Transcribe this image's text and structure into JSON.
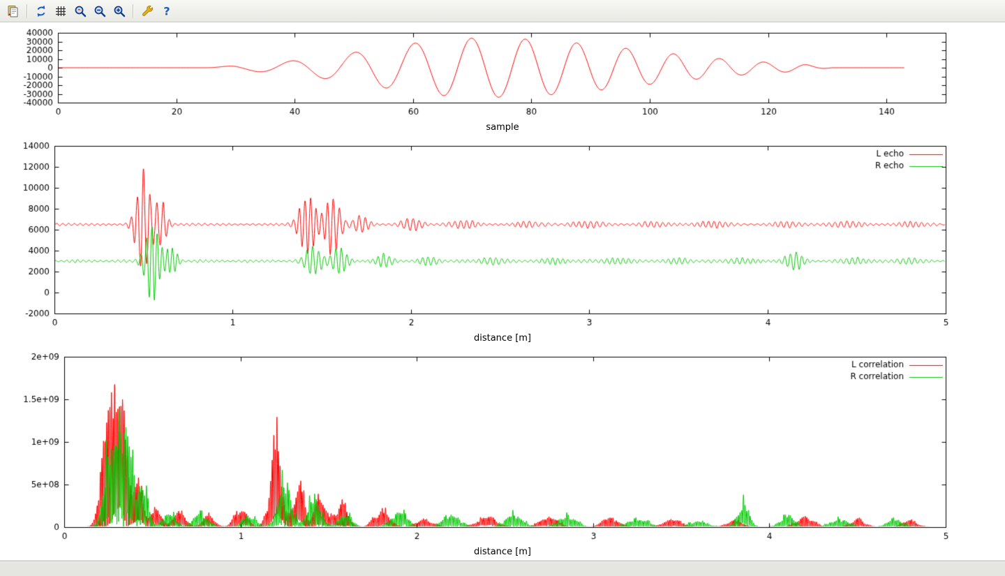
{
  "toolbar": {
    "buttons": [
      "copy",
      "replot",
      "grid",
      "zoom-previous",
      "zoom-out",
      "zoom-in",
      "settings",
      "help"
    ]
  },
  "statusbar": {
    "text": ""
  },
  "colors": {
    "red": "#ff0000",
    "green": "#00c800",
    "axis": "#000000"
  },
  "chart_data": [
    {
      "type": "line",
      "title": "",
      "xlabel": "sample",
      "ylabel": "",
      "xlim": [
        0,
        150
      ],
      "ylim": [
        -40000,
        40000
      ],
      "grid": false,
      "legend": false,
      "xticks": {
        "values": [
          0,
          20,
          40,
          60,
          80,
          100,
          120,
          140
        ],
        "labels": [
          "0",
          "20",
          "40",
          "60",
          "80",
          "100",
          "120",
          "140"
        ]
      },
      "yticks": {
        "values": [
          -40000,
          -30000,
          -20000,
          -10000,
          0,
          10000,
          20000,
          30000,
          40000
        ],
        "labels": [
          "-40000",
          "-30000",
          "-20000",
          "-10000",
          "0",
          "10000",
          "20000",
          "30000",
          "40000"
        ]
      },
      "series": [
        {
          "name": "",
          "color": "#ff0000",
          "gen": {
            "type": "chirp",
            "xstart": 25,
            "xend": 131,
            "xmax_data": 143,
            "peak": 72,
            "amp": 34000,
            "sigma_l": 19,
            "sigma_r": 26,
            "f0": 0.082,
            "f1": 0.142,
            "points": 1500
          }
        }
      ]
    },
    {
      "type": "line",
      "title": "",
      "xlabel": "distance [m]",
      "ylabel": "",
      "xlim": [
        0,
        5
      ],
      "ylim": [
        -2000,
        14000
      ],
      "grid": false,
      "legend": true,
      "legend_position": "top-right",
      "xticks": {
        "values": [
          0,
          1,
          2,
          3,
          4,
          5
        ],
        "labels": [
          "0",
          "1",
          "2",
          "3",
          "4",
          "5"
        ]
      },
      "yticks": {
        "values": [
          -2000,
          0,
          2000,
          4000,
          6000,
          8000,
          10000,
          12000,
          14000
        ],
        "labels": [
          "-2000",
          "0",
          "2000",
          "4000",
          "6000",
          "8000",
          "10000",
          "12000",
          "14000"
        ]
      },
      "series": [
        {
          "name": "L echo",
          "color": "#ff0000",
          "gen": {
            "type": "echo",
            "seed": 11,
            "points": 3200,
            "base": 6500,
            "base_amp": 150,
            "carrier_freq": 30,
            "bursts": [
              [
                0.5,
                0.05,
                6000
              ],
              [
                0.6,
                0.035,
                2600
              ],
              [
                1.42,
                0.055,
                3400
              ],
              [
                1.56,
                0.05,
                3400
              ],
              [
                1.72,
                0.05,
                1000
              ],
              [
                2.0,
                0.06,
                700
              ],
              [
                2.3,
                0.08,
                420
              ],
              [
                2.65,
                0.08,
                300
              ],
              [
                3.0,
                0.1,
                320
              ],
              [
                3.35,
                0.08,
                280
              ],
              [
                3.7,
                0.1,
                300
              ],
              [
                4.1,
                0.08,
                280
              ],
              [
                4.45,
                0.1,
                300
              ],
              [
                4.8,
                0.08,
                260
              ]
            ]
          }
        },
        {
          "name": "R echo",
          "color": "#00c800",
          "gen": {
            "type": "echo",
            "seed": 22,
            "points": 3200,
            "base": 3000,
            "base_amp": 160,
            "carrier_freq": 32,
            "bursts": [
              [
                0.55,
                0.05,
                4600
              ],
              [
                0.66,
                0.035,
                1600
              ],
              [
                1.45,
                0.055,
                1700
              ],
              [
                1.6,
                0.05,
                1500
              ],
              [
                1.85,
                0.05,
                700
              ],
              [
                2.1,
                0.06,
                480
              ],
              [
                2.45,
                0.08,
                350
              ],
              [
                2.8,
                0.08,
                320
              ],
              [
                3.15,
                0.09,
                300
              ],
              [
                3.5,
                0.08,
                300
              ],
              [
                3.85,
                0.08,
                300
              ],
              [
                4.15,
                0.055,
                1050
              ],
              [
                4.5,
                0.08,
                300
              ],
              [
                4.8,
                0.08,
                280
              ]
            ]
          }
        }
      ]
    },
    {
      "type": "line",
      "title": "",
      "xlabel": "distance [m]",
      "ylabel": "",
      "xlim": [
        0,
        5
      ],
      "ylim": [
        0,
        2000000000.0
      ],
      "grid": false,
      "legend": true,
      "legend_position": "top-right",
      "xticks": {
        "values": [
          0,
          1,
          2,
          3,
          4,
          5
        ],
        "labels": [
          "0",
          "1",
          "2",
          "3",
          "4",
          "5"
        ]
      },
      "yticks": {
        "values": [
          0,
          500000000.0,
          1000000000.0,
          1500000000.0,
          2000000000.0
        ],
        "labels": [
          "0",
          "5e+08",
          "1e+09",
          "1.5e+09",
          "2e+09"
        ]
      },
      "series": [
        {
          "name": "L correlation",
          "color": "#ff0000",
          "gen": {
            "type": "spikes",
            "seed": 33,
            "points": 4400,
            "carrier_freq": 55,
            "bursts": [
              [
                0.25,
                0.05,
                2800000000.0
              ],
              [
                0.33,
                0.045,
                2400000000.0
              ],
              [
                0.42,
                0.04,
                900000000.0
              ],
              [
                0.52,
                0.04,
                500000000.0
              ],
              [
                0.65,
                0.05,
                350000000.0
              ],
              [
                0.82,
                0.05,
                250000000.0
              ],
              [
                1.0,
                0.05,
                450000000.0
              ],
              [
                1.2,
                0.045,
                1900000000.0
              ],
              [
                1.33,
                0.045,
                1050000000.0
              ],
              [
                1.45,
                0.04,
                700000000.0
              ],
              [
                1.57,
                0.05,
                550000000.0
              ],
              [
                1.8,
                0.06,
                400000000.0
              ],
              [
                2.05,
                0.07,
                180000000.0
              ],
              [
                2.4,
                0.08,
                230000000.0
              ],
              [
                2.75,
                0.07,
                230000000.0
              ],
              [
                3.1,
                0.07,
                200000000.0
              ],
              [
                3.45,
                0.08,
                160000000.0
              ],
              [
                3.8,
                0.06,
                160000000.0
              ],
              [
                4.2,
                0.07,
                220000000.0
              ],
              [
                4.5,
                0.06,
                190000000.0
              ],
              [
                4.8,
                0.06,
                160000000.0
              ]
            ]
          }
        },
        {
          "name": "R correlation",
          "color": "#00c800",
          "gen": {
            "type": "spikes",
            "seed": 44,
            "points": 4400,
            "carrier_freq": 52,
            "bursts": [
              [
                0.27,
                0.05,
                2300000000.0
              ],
              [
                0.36,
                0.05,
                1900000000.0
              ],
              [
                0.45,
                0.04,
                1100000000.0
              ],
              [
                0.6,
                0.05,
                320000000.0
              ],
              [
                0.78,
                0.06,
                320000000.0
              ],
              [
                1.05,
                0.05,
                300000000.0
              ],
              [
                1.25,
                0.05,
                1300000000.0
              ],
              [
                1.42,
                0.05,
                750000000.0
              ],
              [
                1.6,
                0.05,
                350000000.0
              ],
              [
                1.9,
                0.07,
                320000000.0
              ],
              [
                2.2,
                0.07,
                280000000.0
              ],
              [
                2.55,
                0.08,
                260000000.0
              ],
              [
                2.85,
                0.07,
                300000000.0
              ],
              [
                3.25,
                0.08,
                220000000.0
              ],
              [
                3.6,
                0.07,
                170000000.0
              ],
              [
                3.85,
                0.045,
                550000000.0
              ],
              [
                4.1,
                0.06,
                260000000.0
              ],
              [
                4.4,
                0.07,
                220000000.0
              ],
              [
                4.72,
                0.07,
                170000000.0
              ]
            ]
          }
        }
      ]
    }
  ]
}
